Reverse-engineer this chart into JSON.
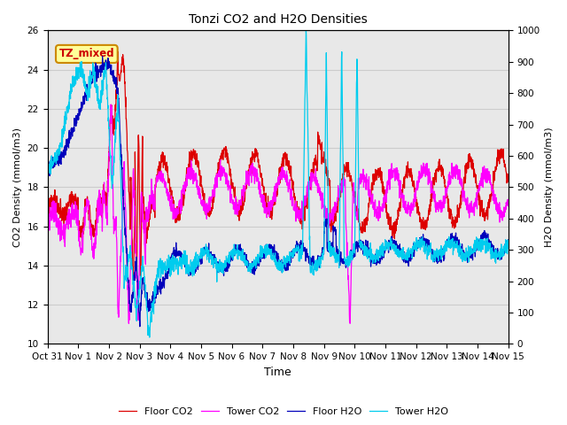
{
  "title": "Tonzi CO2 and H2O Densities",
  "xlabel": "Time",
  "ylabel_left": "CO2 Density (mmol/m3)",
  "ylabel_right": "H2O Density (mmol/m3)",
  "annotation": "TZ_mixed",
  "annotation_color": "#cc0000",
  "annotation_bg": "#ffff99",
  "annotation_border": "#cc8800",
  "ylim_left": [
    10,
    26
  ],
  "ylim_right": [
    0,
    1000
  ],
  "yticks_left": [
    10,
    12,
    14,
    16,
    18,
    20,
    22,
    24,
    26
  ],
  "yticks_right": [
    0,
    100,
    200,
    300,
    400,
    500,
    600,
    700,
    800,
    900,
    1000
  ],
  "colors": {
    "floor_co2": "#dd0000",
    "tower_co2": "#ff00ff",
    "floor_h2o": "#0000bb",
    "tower_h2o": "#00ccee"
  },
  "legend_labels": [
    "Floor CO2",
    "Tower CO2",
    "Floor H2O",
    "Tower H2O"
  ],
  "grid_color": "#cccccc",
  "bg_color": "#e8e8e8",
  "fig_bg": "#ffffff"
}
